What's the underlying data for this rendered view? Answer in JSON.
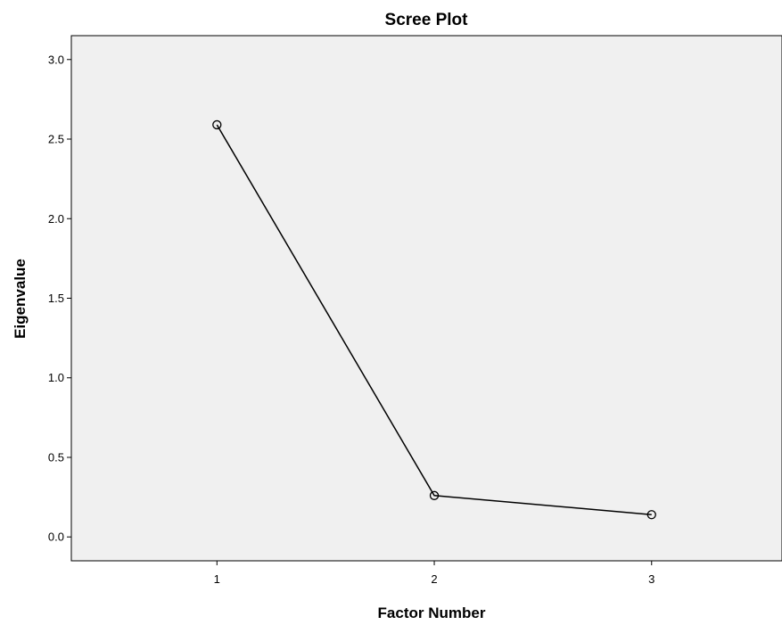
{
  "chart_data": {
    "type": "line",
    "title": "Scree Plot",
    "xlabel": "Factor Number",
    "ylabel": "Eigenvalue",
    "x": [
      1,
      2,
      3
    ],
    "y": [
      2.59,
      0.26,
      0.14
    ],
    "xlim": [
      0.33,
      3.6
    ],
    "ylim": [
      -0.15,
      3.15
    ],
    "xticks": [
      "1",
      "2",
      "3"
    ],
    "yticks": [
      "0.0",
      "0.5",
      "1.0",
      "1.5",
      "2.0",
      "2.5",
      "3.0"
    ],
    "grid": false,
    "marker": "open-circle",
    "plot_background": "#f0f0f0",
    "line_color": "#000000"
  }
}
